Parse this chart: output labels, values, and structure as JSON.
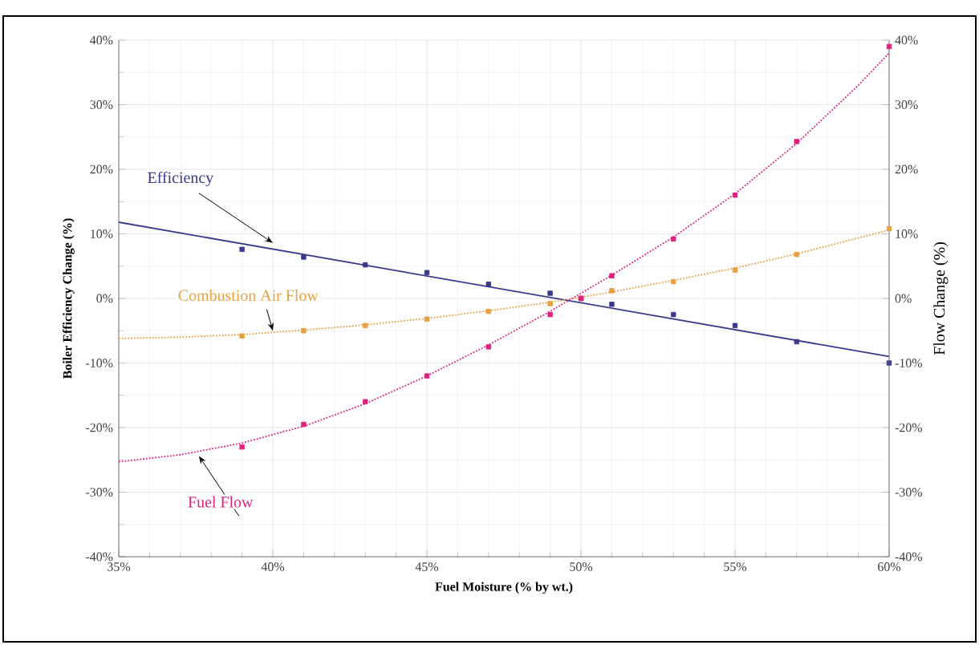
{
  "chart_data": {
    "type": "scatter",
    "xlabel": "Fuel Moisture (% by wt.)",
    "ylabel": "Boiler Efficiency Change (%)",
    "y2label": "Flow Change (%)",
    "xlim": [
      35,
      60
    ],
    "xticks": [
      {
        "value": 35,
        "label": "35%"
      },
      {
        "value": 40,
        "label": "40%"
      },
      {
        "value": 45,
        "label": "45%"
      },
      {
        "value": 50,
        "label": "50%"
      },
      {
        "value": 55,
        "label": "55%"
      },
      {
        "value": 60,
        "label": "60%"
      }
    ],
    "ylim": [
      -40,
      40
    ],
    "yticks": [
      {
        "value": -40,
        "label": "-40%"
      },
      {
        "value": -30,
        "label": "-30%"
      },
      {
        "value": -20,
        "label": "-20%"
      },
      {
        "value": -10,
        "label": "-10%"
      },
      {
        "value": 0,
        "label": "0%"
      },
      {
        "value": 10,
        "label": "10%"
      },
      {
        "value": 20,
        "label": "20%"
      },
      {
        "value": 30,
        "label": "30%"
      },
      {
        "value": 40,
        "label": "40%"
      }
    ],
    "y2lim": [
      -40,
      40
    ],
    "y2ticks": [
      {
        "value": -40,
        "label": "-40%"
      },
      {
        "value": -30,
        "label": "-30%"
      },
      {
        "value": -20,
        "label": "-20%"
      },
      {
        "value": -10,
        "label": "-10%"
      },
      {
        "value": 0,
        "label": "0%"
      },
      {
        "value": 10,
        "label": "10%"
      },
      {
        "value": 20,
        "label": "20%"
      },
      {
        "value": 30,
        "label": "30%"
      },
      {
        "value": 40,
        "label": "40%"
      }
    ],
    "grid": true,
    "marker": "square",
    "x": [
      39,
      41,
      43,
      45,
      47,
      49,
      50,
      51,
      53,
      55,
      57,
      60
    ],
    "series": [
      {
        "name": "Efficiency",
        "color": "#3a3a8c",
        "values": [
          7.6,
          6.4,
          5.2,
          4.0,
          2.2,
          0.8,
          0,
          -0.9,
          -2.5,
          -4.2,
          -6.7,
          -10
        ]
      },
      {
        "name": "Combustion Air Flow",
        "color": "#e8a040",
        "axis": "y2",
        "values": [
          -5.8,
          -5.0,
          -4.2,
          -3.2,
          -2.0,
          -0.8,
          0,
          1.2,
          2.6,
          4.4,
          6.8,
          10.8
        ]
      },
      {
        "name": "Fuel Flow",
        "color": "#e0207f",
        "axis": "y2",
        "values": [
          -23,
          -19.5,
          -16,
          -12,
          -7.5,
          -2.5,
          0,
          3.5,
          9.2,
          16,
          24.3,
          39
        ]
      },
      {
        "type": "line",
        "color": "#3a3a8c",
        "line_style": "solid",
        "marker": "none",
        "x": [
          35,
          60
        ],
        "values": [
          11.8,
          -9.0
        ]
      },
      {
        "type": "line",
        "color": "#e8a040",
        "line_style": "dotted",
        "marker": "none",
        "axis": "y2",
        "x": [
          35,
          37,
          39,
          41,
          43,
          45,
          47,
          49,
          51,
          53,
          55,
          57,
          60
        ],
        "values": [
          -6.2,
          -6.0,
          -5.6,
          -4.9,
          -4.1,
          -3.1,
          -1.9,
          -0.6,
          1.0,
          2.8,
          4.7,
          6.9,
          10.6
        ]
      },
      {
        "type": "line",
        "color": "#e0207f",
        "line_style": "dotted",
        "marker": "none",
        "axis": "y2",
        "x": [
          35,
          37,
          39,
          41,
          43,
          45,
          47,
          49,
          51,
          53,
          55,
          57,
          59,
          60
        ],
        "values": [
          -25.3,
          -24.2,
          -22.4,
          -19.8,
          -16.3,
          -12.0,
          -7.2,
          -2.0,
          3.6,
          9.5,
          16.2,
          24.0,
          33.0,
          38.0
        ]
      }
    ]
  }
}
